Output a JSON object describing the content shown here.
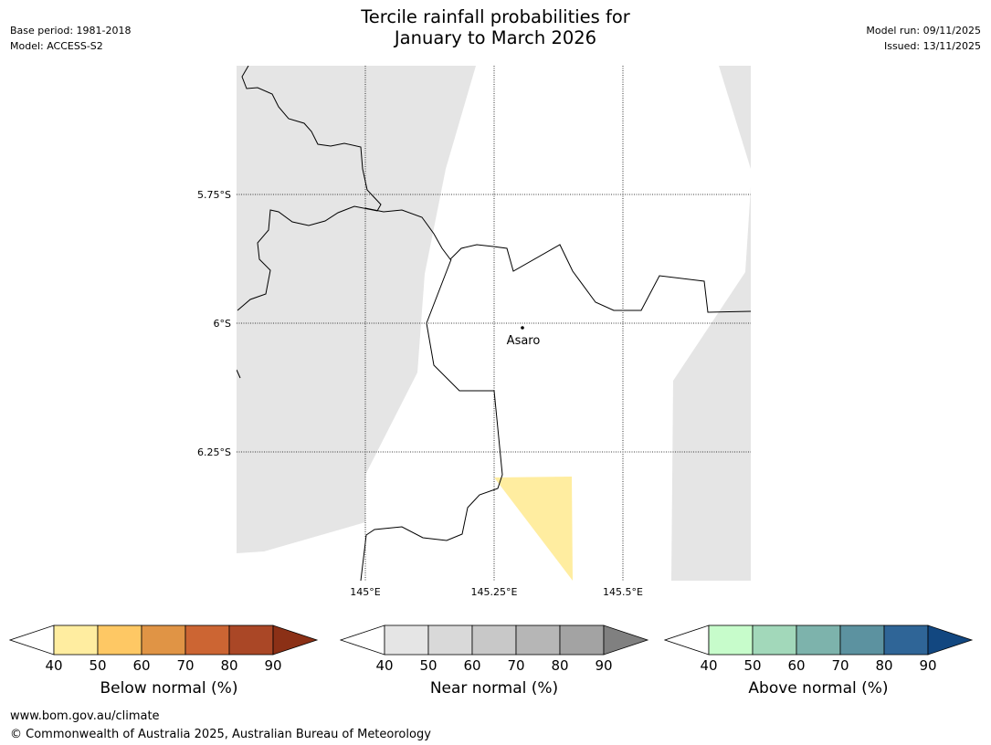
{
  "header": {
    "title_line1": "Tercile rainfall probabilities for",
    "title_line2": "January to March 2026",
    "base_period": "Base period: 1981-2018",
    "model": "Model: ACCESS-S2",
    "model_run": "Model run: 09/11/2025",
    "issued": "Issued: 13/11/2025"
  },
  "map": {
    "lat_labels": [
      "5.75°S",
      "6°S",
      "6.25°S"
    ],
    "lon_labels": [
      "145°E",
      "145.25°E",
      "145.5°E"
    ],
    "place": {
      "name": "Asaro"
    },
    "colors": {
      "near_normal_shade": "#e5e5e5",
      "below_normal_shade": "#ffeda0",
      "boundary": "#000000",
      "grid": "#000000"
    }
  },
  "colorbars": [
    {
      "id": "below",
      "label": "Below normal (%)",
      "ticks": [
        "40",
        "50",
        "60",
        "70",
        "80",
        "90"
      ],
      "colors": [
        "#ffeda0",
        "#fec864",
        "#e09445",
        "#cc6533",
        "#aa4726"
      ],
      "extend_color": "#8b3016"
    },
    {
      "id": "near",
      "label": "Near normal (%)",
      "ticks": [
        "40",
        "50",
        "60",
        "70",
        "80",
        "90"
      ],
      "colors": [
        "#e5e5e5",
        "#d9d9d9",
        "#c8c8c8",
        "#b6b6b6",
        "#a3a3a3"
      ],
      "extend_color": "#808080"
    },
    {
      "id": "above",
      "label": "Above normal (%)",
      "ticks": [
        "40",
        "50",
        "60",
        "70",
        "80",
        "90"
      ],
      "colors": [
        "#c7fccb",
        "#a2d8ba",
        "#7db3ac",
        "#5c92a0",
        "#2f6597"
      ],
      "extend_color": "#124780"
    }
  ],
  "footer": {
    "website": "www.bom.gov.au/climate",
    "copyright": "© Commonwealth of Australia 2025, Australian Bureau of Meteorology"
  }
}
